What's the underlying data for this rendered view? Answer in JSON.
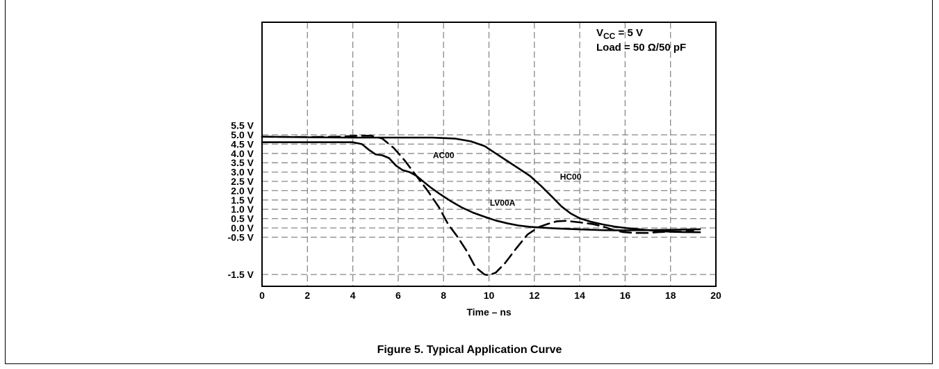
{
  "chart_data": {
    "type": "line",
    "title": "",
    "xlabel": "Time – ns",
    "ylabel": "",
    "xlim": [
      0,
      20
    ],
    "x_ticks": [
      0,
      2,
      4,
      6,
      8,
      10,
      12,
      14,
      16,
      18,
      20
    ],
    "y_ticks": [
      {
        "value": 5.5,
        "label": "5.5 V"
      },
      {
        "value": 5.0,
        "label": "5.0 V"
      },
      {
        "value": 4.5,
        "label": "4.5 V"
      },
      {
        "value": 4.0,
        "label": "4.0 V"
      },
      {
        "value": 3.5,
        "label": "3.5 V"
      },
      {
        "value": 3.0,
        "label": "3.0 V"
      },
      {
        "value": 2.5,
        "label": "2.5 V"
      },
      {
        "value": 2.0,
        "label": "2.0 V"
      },
      {
        "value": 1.5,
        "label": "1.5 V"
      },
      {
        "value": 1.0,
        "label": "1.0 V"
      },
      {
        "value": 0.5,
        "label": "0.5 V"
      },
      {
        "value": 0.0,
        "label": "0.0 V"
      },
      {
        "value": -0.5,
        "label": "-0.5 V"
      },
      {
        "value": -1.5,
        "label": "-1.5 V"
      }
    ],
    "grid": true,
    "annotation": {
      "vcc_prefix": "V",
      "vcc_sub": "CC",
      "vcc_rest": " = 5 V",
      "load": "Load = 50 Ω/50 pF"
    },
    "series": [
      {
        "name": "AC00",
        "style": "dashed",
        "x": [
          0,
          2,
          3.5,
          4.2,
          4.8,
          5.3,
          5.8,
          6.3,
          6.8,
          7.3,
          7.8,
          8.2,
          8.6,
          9.0,
          9.4,
          9.8,
          10.0,
          10.3,
          10.7,
          11.2,
          11.7,
          12.2,
          12.6,
          13.0,
          13.4,
          14.0,
          14.6,
          15.1,
          15.5,
          15.9,
          16.4,
          17.0,
          17.5,
          18.0,
          18.5,
          19.0
        ],
        "y": [
          4.9,
          4.88,
          4.9,
          4.95,
          4.95,
          4.8,
          4.3,
          3.6,
          2.8,
          2.0,
          1.1,
          0.2,
          -0.45,
          -0.85,
          -1.3,
          -1.5,
          -1.52,
          -1.45,
          -1.2,
          -0.8,
          -0.35,
          0.05,
          0.22,
          0.36,
          0.38,
          0.3,
          0.2,
          0.05,
          -0.12,
          -0.22,
          -0.27,
          -0.27,
          -0.22,
          -0.2,
          -0.2,
          -0.15
        ]
      },
      {
        "name": "LV00A",
        "style": "solid",
        "x": [
          0,
          2,
          4.0,
          4.4,
          4.7,
          5.0,
          5.3,
          5.6,
          5.9,
          6.2,
          6.5,
          6.8,
          7.1,
          7.4,
          7.8,
          8.3,
          8.8,
          9.3,
          9.8,
          10.3,
          10.8,
          11.3,
          11.8,
          12.4,
          13.0,
          14.0,
          15.0,
          16.0,
          17.0,
          18.0,
          19.3
        ],
        "y": [
          4.6,
          4.6,
          4.6,
          4.5,
          4.2,
          3.95,
          3.9,
          3.75,
          3.35,
          3.1,
          3.0,
          2.8,
          2.5,
          2.2,
          1.85,
          1.45,
          1.1,
          0.82,
          0.6,
          0.4,
          0.25,
          0.13,
          0.06,
          0.01,
          -0.03,
          -0.08,
          -0.12,
          -0.13,
          -0.12,
          -0.1,
          -0.07
        ]
      },
      {
        "name": "HC00",
        "style": "solid",
        "x": [
          0,
          2,
          4,
          6,
          7.5,
          8.5,
          9.2,
          9.8,
          10.3,
          10.8,
          11.3,
          11.8,
          12.3,
          12.8,
          13.2,
          13.6,
          14.0,
          14.5,
          15.0,
          15.5,
          16.0,
          16.5,
          17.0,
          17.5,
          18.0,
          18.5,
          19.3
        ],
        "y": [
          4.9,
          4.87,
          4.85,
          4.85,
          4.85,
          4.8,
          4.65,
          4.4,
          4.0,
          3.6,
          3.2,
          2.8,
          2.25,
          1.65,
          1.15,
          0.78,
          0.52,
          0.33,
          0.19,
          0.08,
          0.0,
          -0.06,
          -0.12,
          -0.17,
          -0.2,
          -0.22,
          -0.23
        ]
      }
    ]
  },
  "caption": "Figure 5. Typical Application Curve"
}
